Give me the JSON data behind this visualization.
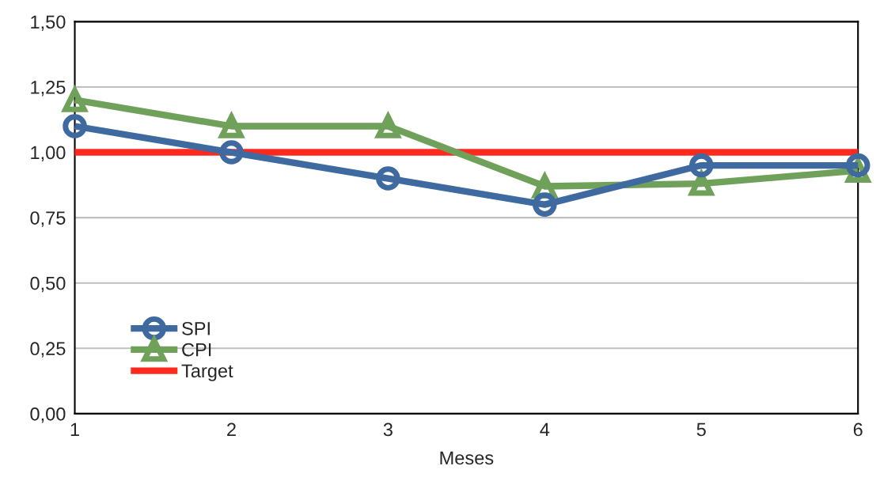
{
  "chart_data": {
    "type": "line",
    "xlabel": "Meses",
    "x": [
      1,
      2,
      3,
      4,
      5,
      6
    ],
    "xlim": [
      1,
      6
    ],
    "xticks": [
      1,
      2,
      3,
      4,
      5,
      6
    ],
    "ylim": [
      0,
      1.5
    ],
    "yticks": [
      {
        "value": 0,
        "label": "0,00"
      },
      {
        "value": 0.25,
        "label": "0,25"
      },
      {
        "value": 0.5,
        "label": "0,50"
      },
      {
        "value": 0.75,
        "label": "0,75"
      },
      {
        "value": 1.0,
        "label": "1,00"
      },
      {
        "value": 1.25,
        "label": "1,25"
      },
      {
        "value": 1.5,
        "label": "1,50"
      }
    ],
    "grid": "y",
    "legend": "bottom left",
    "series": [
      {
        "name": "SPI",
        "color": "#3e6aa0",
        "marker": "circle",
        "values": [
          1.1,
          1.0,
          0.9,
          0.8,
          0.95,
          0.95
        ]
      },
      {
        "name": "CPI",
        "color": "#6fa15a",
        "marker": "triangle",
        "values": [
          1.2,
          1.1,
          1.1,
          0.87,
          0.88,
          0.93
        ]
      },
      {
        "name": "Target",
        "color": "#ff2a1f",
        "marker": "none",
        "values": [
          1.0,
          1.0,
          1.0,
          1.0,
          1.0,
          1.0
        ]
      }
    ]
  }
}
